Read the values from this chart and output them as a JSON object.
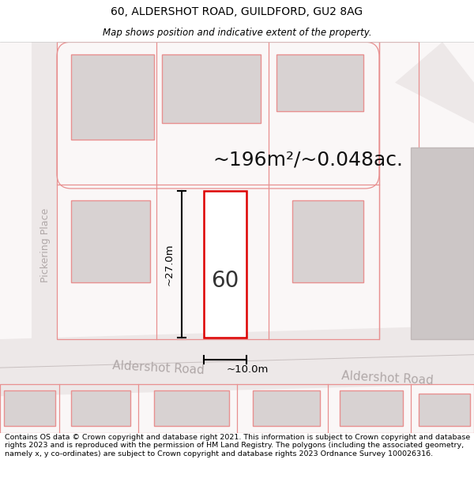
{
  "title_line1": "60, ALDERSHOT ROAD, GUILDFORD, GU2 8AG",
  "title_line2": "Map shows position and indicative extent of the property.",
  "footer_text": "Contains OS data © Crown copyright and database right 2021. This information is subject to Crown copyright and database rights 2023 and is reproduced with the permission of HM Land Registry. The polygons (including the associated geometry, namely x, y co-ordinates) are subject to Crown copyright and database rights 2023 Ordnance Survey 100026316.",
  "area_label": "~196m²/~0.048ac.",
  "width_label": "~10.0m",
  "height_label": "~27.0m",
  "number_label": "60",
  "street_label_left": "Aldershot Road",
  "street_label_right": "Aldershot Road",
  "side_street_label": "Pickering Place",
  "bg_color": "#ffffff",
  "map_bg": "#ffffff",
  "property_outline": "#dd0000",
  "property_fill": "#ffffff",
  "dimension_color": "#000000",
  "road_fill": "#ede8e8",
  "road_line": "#c8b8b8",
  "building_fill": "#d8d2d2",
  "lot_outline": "#e89090",
  "far_right_fill": "#d0caca",
  "title_fontsize": 10,
  "subtitle_fontsize": 8.5,
  "footer_fontsize": 6.8,
  "street_fontsize": 10,
  "area_fontsize": 18
}
